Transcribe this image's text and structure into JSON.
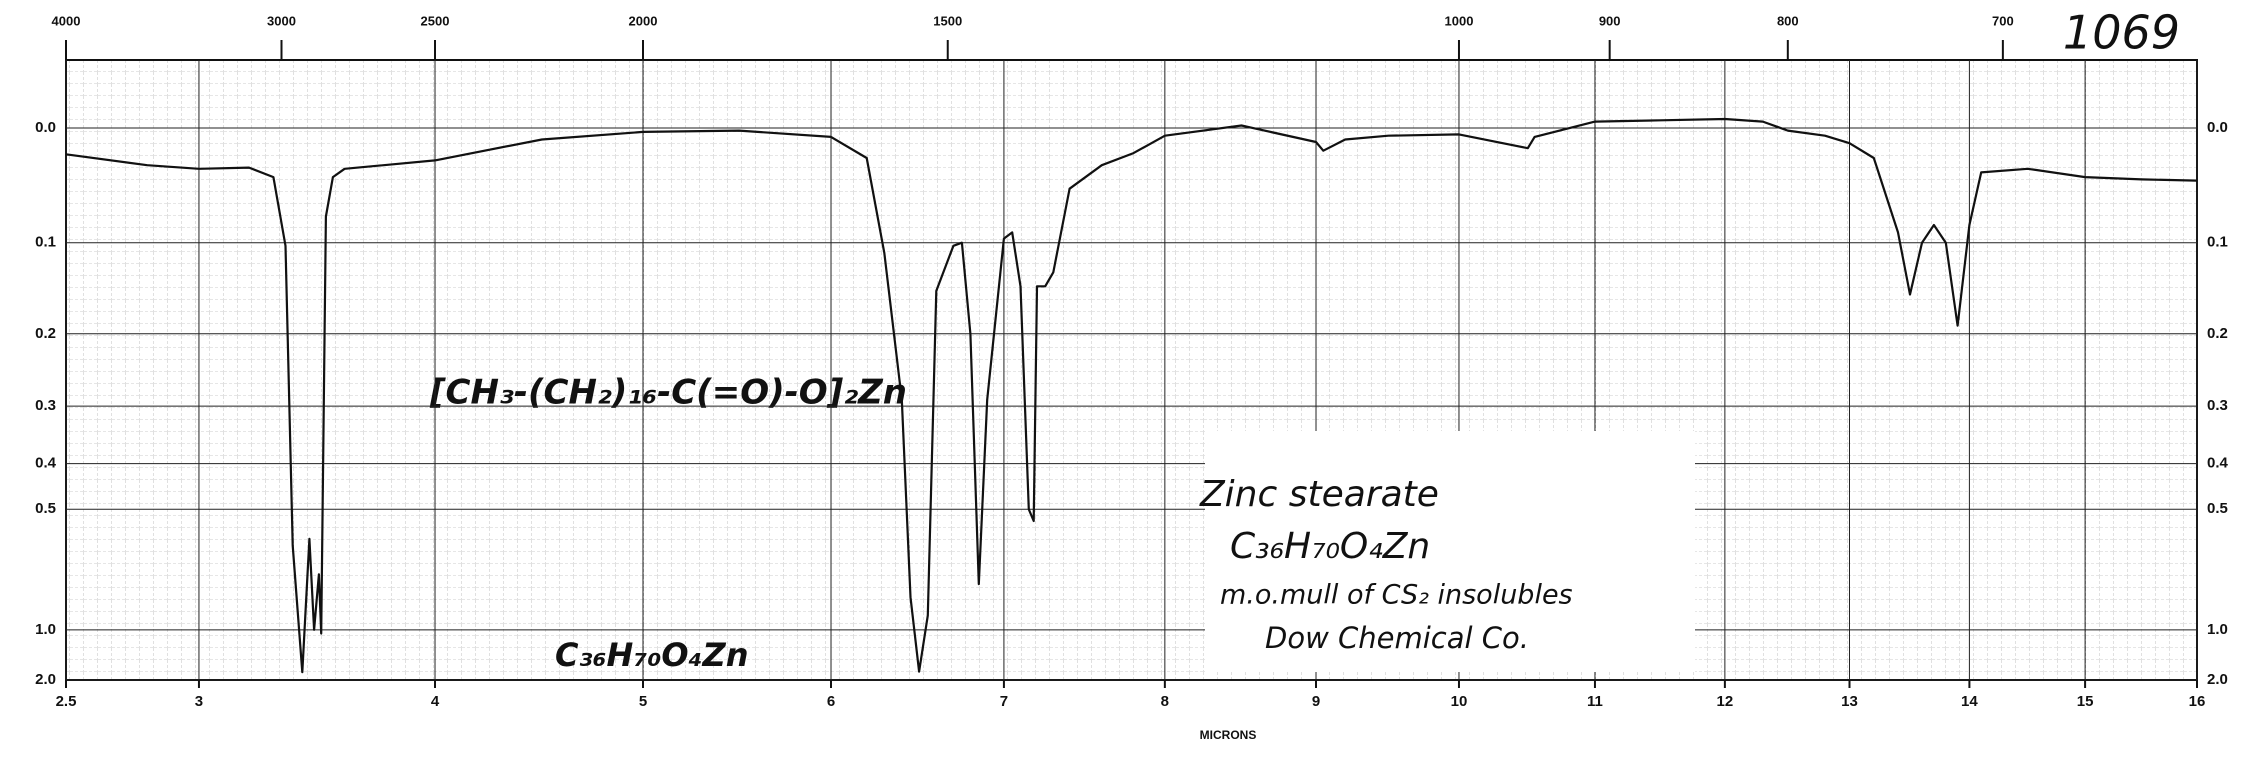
{
  "chart_data": {
    "type": "line",
    "x_label": "MICRONS",
    "xscale": "sqrt",
    "xlim": [
      2.5,
      16
    ],
    "xticks": [
      2.5,
      3,
      4,
      5,
      6,
      7,
      8,
      9,
      10,
      11,
      12,
      13,
      14,
      15,
      16
    ],
    "x2ticks": [
      4000,
      3000,
      2500,
      2000,
      1500,
      1000,
      900,
      800,
      700
    ],
    "yscale": "absorbance",
    "ylim": [
      -0.05,
      2.0
    ],
    "yticks": [
      {
        "value": 0,
        "label": "0.0"
      },
      0.1,
      0.2,
      0.3,
      0.4,
      0.5,
      {
        "value": 1,
        "label": "1.0"
      },
      {
        "value": 2,
        "label": "2.0"
      }
    ],
    "grid": true,
    "color": "#111111",
    "x": [
      2.5,
      2.8,
      3.0,
      3.2,
      3.3,
      3.35,
      3.38,
      3.42,
      3.45,
      3.47,
      3.49,
      3.5,
      3.52,
      3.55,
      3.6,
      4.0,
      4.5,
      5.0,
      5.5,
      6.0,
      6.2,
      6.3,
      6.4,
      6.45,
      6.5,
      6.55,
      6.6,
      6.7,
      6.75,
      6.8,
      6.85,
      6.9,
      7.0,
      7.05,
      7.1,
      7.15,
      7.18,
      7.2,
      7.25,
      7.3,
      7.4,
      7.6,
      7.8,
      8.0,
      8.5,
      9.0,
      9.05,
      9.2,
      9.5,
      10.0,
      10.5,
      10.55,
      11.0,
      11.5,
      12.0,
      12.3,
      12.5,
      12.8,
      13.0,
      13.2,
      13.4,
      13.5,
      13.6,
      13.7,
      13.8,
      13.9,
      14.0,
      14.1,
      14.5,
      15.0,
      15.5,
      16.0
    ],
    "values": [
      0.021,
      0.03,
      0.033,
      0.032,
      0.04,
      0.103,
      0.6,
      1.62,
      0.58,
      1.0,
      0.7,
      1.03,
      0.075,
      0.04,
      0.033,
      0.026,
      0.009,
      0.003,
      0.002,
      0.007,
      0.024,
      0.11,
      0.29,
      0.8,
      1.6,
      0.9,
      0.15,
      0.103,
      0.1,
      0.2,
      0.74,
      0.29,
      0.096,
      0.09,
      0.145,
      0.5,
      0.53,
      0.145,
      0.145,
      0.13,
      0.05,
      0.03,
      0.02,
      0.006,
      -0.002,
      0.011,
      0.018,
      0.009,
      0.006,
      0.005,
      0.016,
      0.007,
      -0.005,
      -0.006,
      -0.007,
      -0.005,
      0.002,
      0.006,
      0.012,
      0.024,
      0.09,
      0.154,
      0.1,
      0.083,
      0.1,
      0.19,
      0.083,
      0.036,
      0.033,
      0.04,
      0.042,
      0.043
    ],
    "annotations": {
      "number": "1069",
      "structure": "[CH₃-(CH₂)₁₆-C(=O)-O]₂Zn",
      "formula_bottom": "C₃₆H₇₀O₄Zn",
      "name": "Zinc stearate",
      "formula": "C₃₆H₇₀O₄Zn",
      "method": "m.o.mull of CS₂ insolubles",
      "source": "Dow Chemical Co."
    }
  }
}
